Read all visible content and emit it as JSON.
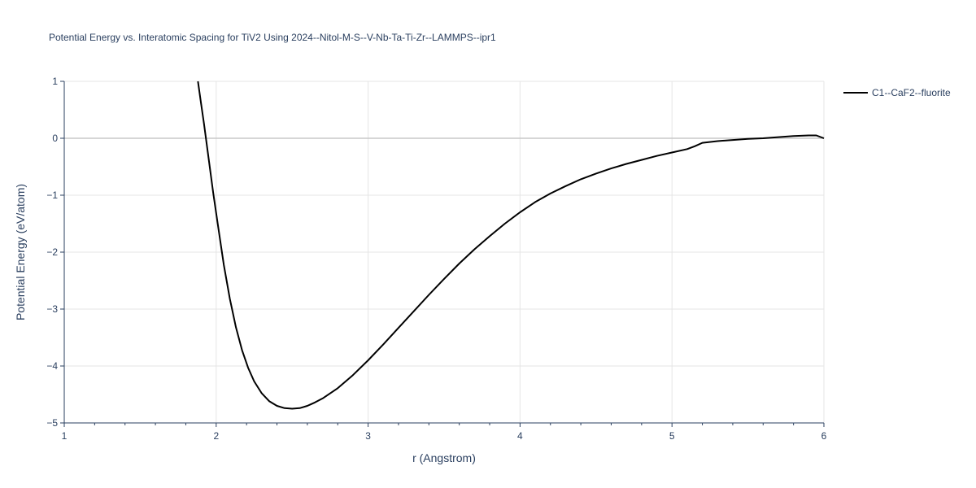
{
  "chart_data": {
    "type": "line",
    "title": "Potential Energy vs. Interatomic Spacing for TiV2 Using 2024--Nitol-M-S--V-Nb-Ta-Ti-Zr--LAMMPS--ipr1",
    "xlabel": "r (Angstrom)",
    "ylabel": "Potential Energy (eV/atom)",
    "xlim": [
      1,
      6
    ],
    "ylim": [
      -5,
      1
    ],
    "x_ticks": [
      1,
      2,
      3,
      4,
      5,
      6
    ],
    "x_tick_labels": [
      "1",
      "2",
      "3",
      "4",
      "5",
      "6"
    ],
    "y_ticks": [
      -5,
      -4,
      -3,
      -2,
      -1,
      0,
      1
    ],
    "y_tick_labels": [
      "−5",
      "−4",
      "−3",
      "−2",
      "−1",
      "0",
      "1"
    ],
    "grid": true,
    "legend_position": "top-right",
    "series": [
      {
        "name": "C1--CaF2--fluorite",
        "color": "#000000",
        "x": [
          1.88,
          1.9,
          1.92,
          1.95,
          1.98,
          2.01,
          2.05,
          2.09,
          2.13,
          2.17,
          2.21,
          2.25,
          2.3,
          2.35,
          2.4,
          2.45,
          2.5,
          2.55,
          2.6,
          2.65,
          2.7,
          2.8,
          2.9,
          3.0,
          3.1,
          3.2,
          3.3,
          3.4,
          3.5,
          3.6,
          3.7,
          3.8,
          3.9,
          4.0,
          4.1,
          4.2,
          4.3,
          4.4,
          4.5,
          4.6,
          4.7,
          4.8,
          4.9,
          5.0,
          5.1,
          5.15,
          5.2,
          5.3,
          5.4,
          5.5,
          5.6,
          5.7,
          5.8,
          5.9,
          5.95,
          6.0
        ],
        "y": [
          1.0,
          0.62,
          0.25,
          -0.35,
          -0.95,
          -1.5,
          -2.22,
          -2.82,
          -3.32,
          -3.72,
          -4.03,
          -4.27,
          -4.48,
          -4.62,
          -4.7,
          -4.74,
          -4.75,
          -4.74,
          -4.7,
          -4.64,
          -4.57,
          -4.39,
          -4.16,
          -3.9,
          -3.62,
          -3.33,
          -3.04,
          -2.75,
          -2.47,
          -2.2,
          -1.95,
          -1.72,
          -1.5,
          -1.3,
          -1.12,
          -0.97,
          -0.84,
          -0.72,
          -0.62,
          -0.53,
          -0.45,
          -0.38,
          -0.31,
          -0.25,
          -0.19,
          -0.14,
          -0.08,
          -0.05,
          -0.03,
          -0.01,
          0.0,
          0.02,
          0.04,
          0.05,
          0.05,
          0.0
        ]
      }
    ]
  }
}
